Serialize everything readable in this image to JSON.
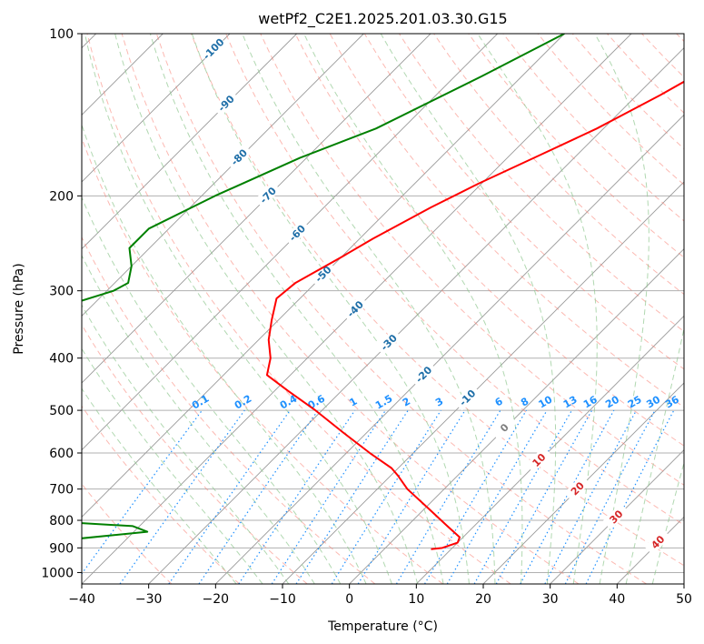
{
  "chart_data": {
    "type": "line",
    "title": "wetPf2_C2E1.2025.201.03.30.G15",
    "xlabel": "Temperature (°C)",
    "ylabel": "Pressure (hPa)",
    "xlim": [
      -40,
      50
    ],
    "ylim": [
      1050,
      100
    ],
    "y_scale": "log",
    "grid": true,
    "x_ticks": [
      -40,
      -30,
      -20,
      -10,
      0,
      10,
      20,
      30,
      40,
      50
    ],
    "y_ticks": [
      100,
      200,
      300,
      400,
      500,
      600,
      700,
      800,
      900,
      1000
    ],
    "series": [
      {
        "color": "#ff0000",
        "points": [
          [
            100,
            -20
          ],
          [
            110,
            -22
          ],
          [
            130,
            -26.5
          ],
          [
            150,
            -31
          ],
          [
            170,
            -36
          ],
          [
            190,
            -40.5
          ],
          [
            210,
            -44
          ],
          [
            240,
            -48
          ],
          [
            260,
            -50
          ],
          [
            290,
            -53
          ],
          [
            310,
            -53.5
          ],
          [
            340,
            -51
          ],
          [
            370,
            -48.5
          ],
          [
            400,
            -45.5
          ],
          [
            430,
            -43.5
          ],
          [
            460,
            -38
          ],
          [
            500,
            -31
          ],
          [
            550,
            -23.5
          ],
          [
            600,
            -16.5
          ],
          [
            640,
            -11
          ],
          [
            660,
            -9
          ],
          [
            700,
            -5.5
          ],
          [
            760,
            0.5
          ],
          [
            820,
            6
          ],
          [
            860,
            9.5
          ],
          [
            880,
            10
          ],
          [
            900,
            8.5
          ],
          [
            905,
            7
          ]
        ]
      },
      {
        "color": "#008000",
        "points": [
          [
            100,
            -50
          ],
          [
            120,
            -56
          ],
          [
            150,
            -64
          ],
          [
            170,
            -71
          ],
          [
            200,
            -78
          ],
          [
            230,
            -83
          ],
          [
            250,
            -83
          ],
          [
            270,
            -80
          ],
          [
            290,
            -78
          ],
          [
            300,
            -79
          ],
          [
            320,
            -84
          ],
          [
            340,
            -88
          ],
          [
            360,
            -88
          ],
          [
            380,
            -96
          ],
          [
            400,
            -112
          ],
          [
            405,
            -119
          ],
          [
            420,
            -104
          ],
          [
            440,
            -93
          ],
          [
            460,
            -95
          ],
          [
            480,
            -103
          ],
          [
            500,
            -106
          ],
          [
            540,
            -110
          ],
          [
            580,
            -117
          ],
          [
            600,
            -116
          ],
          [
            620,
            -126
          ],
          [
            680,
            -134
          ],
          [
            710,
            -111
          ],
          [
            740,
            -96
          ],
          [
            760,
            -92
          ],
          [
            790,
            -65
          ],
          [
            820,
            -41
          ],
          [
            840,
            -38
          ],
          [
            870,
            -49
          ],
          [
            880,
            -59
          ],
          [
            890,
            -58
          ],
          [
            900,
            -53
          ]
        ]
      }
    ],
    "isotherm_labels": [
      {
        "text": "-100",
        "p": 107
      },
      {
        "text": "-90",
        "p": 135
      },
      {
        "text": "-80",
        "p": 170
      },
      {
        "text": "-70",
        "p": 200
      },
      {
        "text": "-60",
        "p": 235
      },
      {
        "text": "-50",
        "p": 280
      },
      {
        "text": "-40",
        "p": 325
      },
      {
        "text": "-30",
        "p": 375
      },
      {
        "text": "-20",
        "p": 430
      },
      {
        "text": "-10",
        "p": 475
      },
      {
        "text": "0",
        "p": 540
      },
      {
        "text": "10",
        "p": 620
      },
      {
        "text": "20",
        "p": 700
      },
      {
        "text": "30",
        "p": 790
      },
      {
        "text": "40",
        "p": 880
      }
    ],
    "mixing_ratio_labels": [
      "0.1",
      "0.2",
      "0.4",
      "0.6",
      "1",
      "1.5",
      "2",
      "3",
      "4",
      "6",
      "8",
      "10",
      "13",
      "16",
      "20",
      "25",
      "30",
      "36"
    ],
    "colors": {
      "temperature": "#ff0000",
      "dewpoint": "#008000",
      "dry_adiabat": "#fa8072",
      "moist_adiabat": "#90c890",
      "mixing_ratio": "#1e90ff",
      "isotherm": "#999999",
      "isotherm_label_cold": "#1f6fa8",
      "isotherm_label_warm": "#d62728",
      "isotherm_label_zero": "#7f7f7f"
    }
  }
}
